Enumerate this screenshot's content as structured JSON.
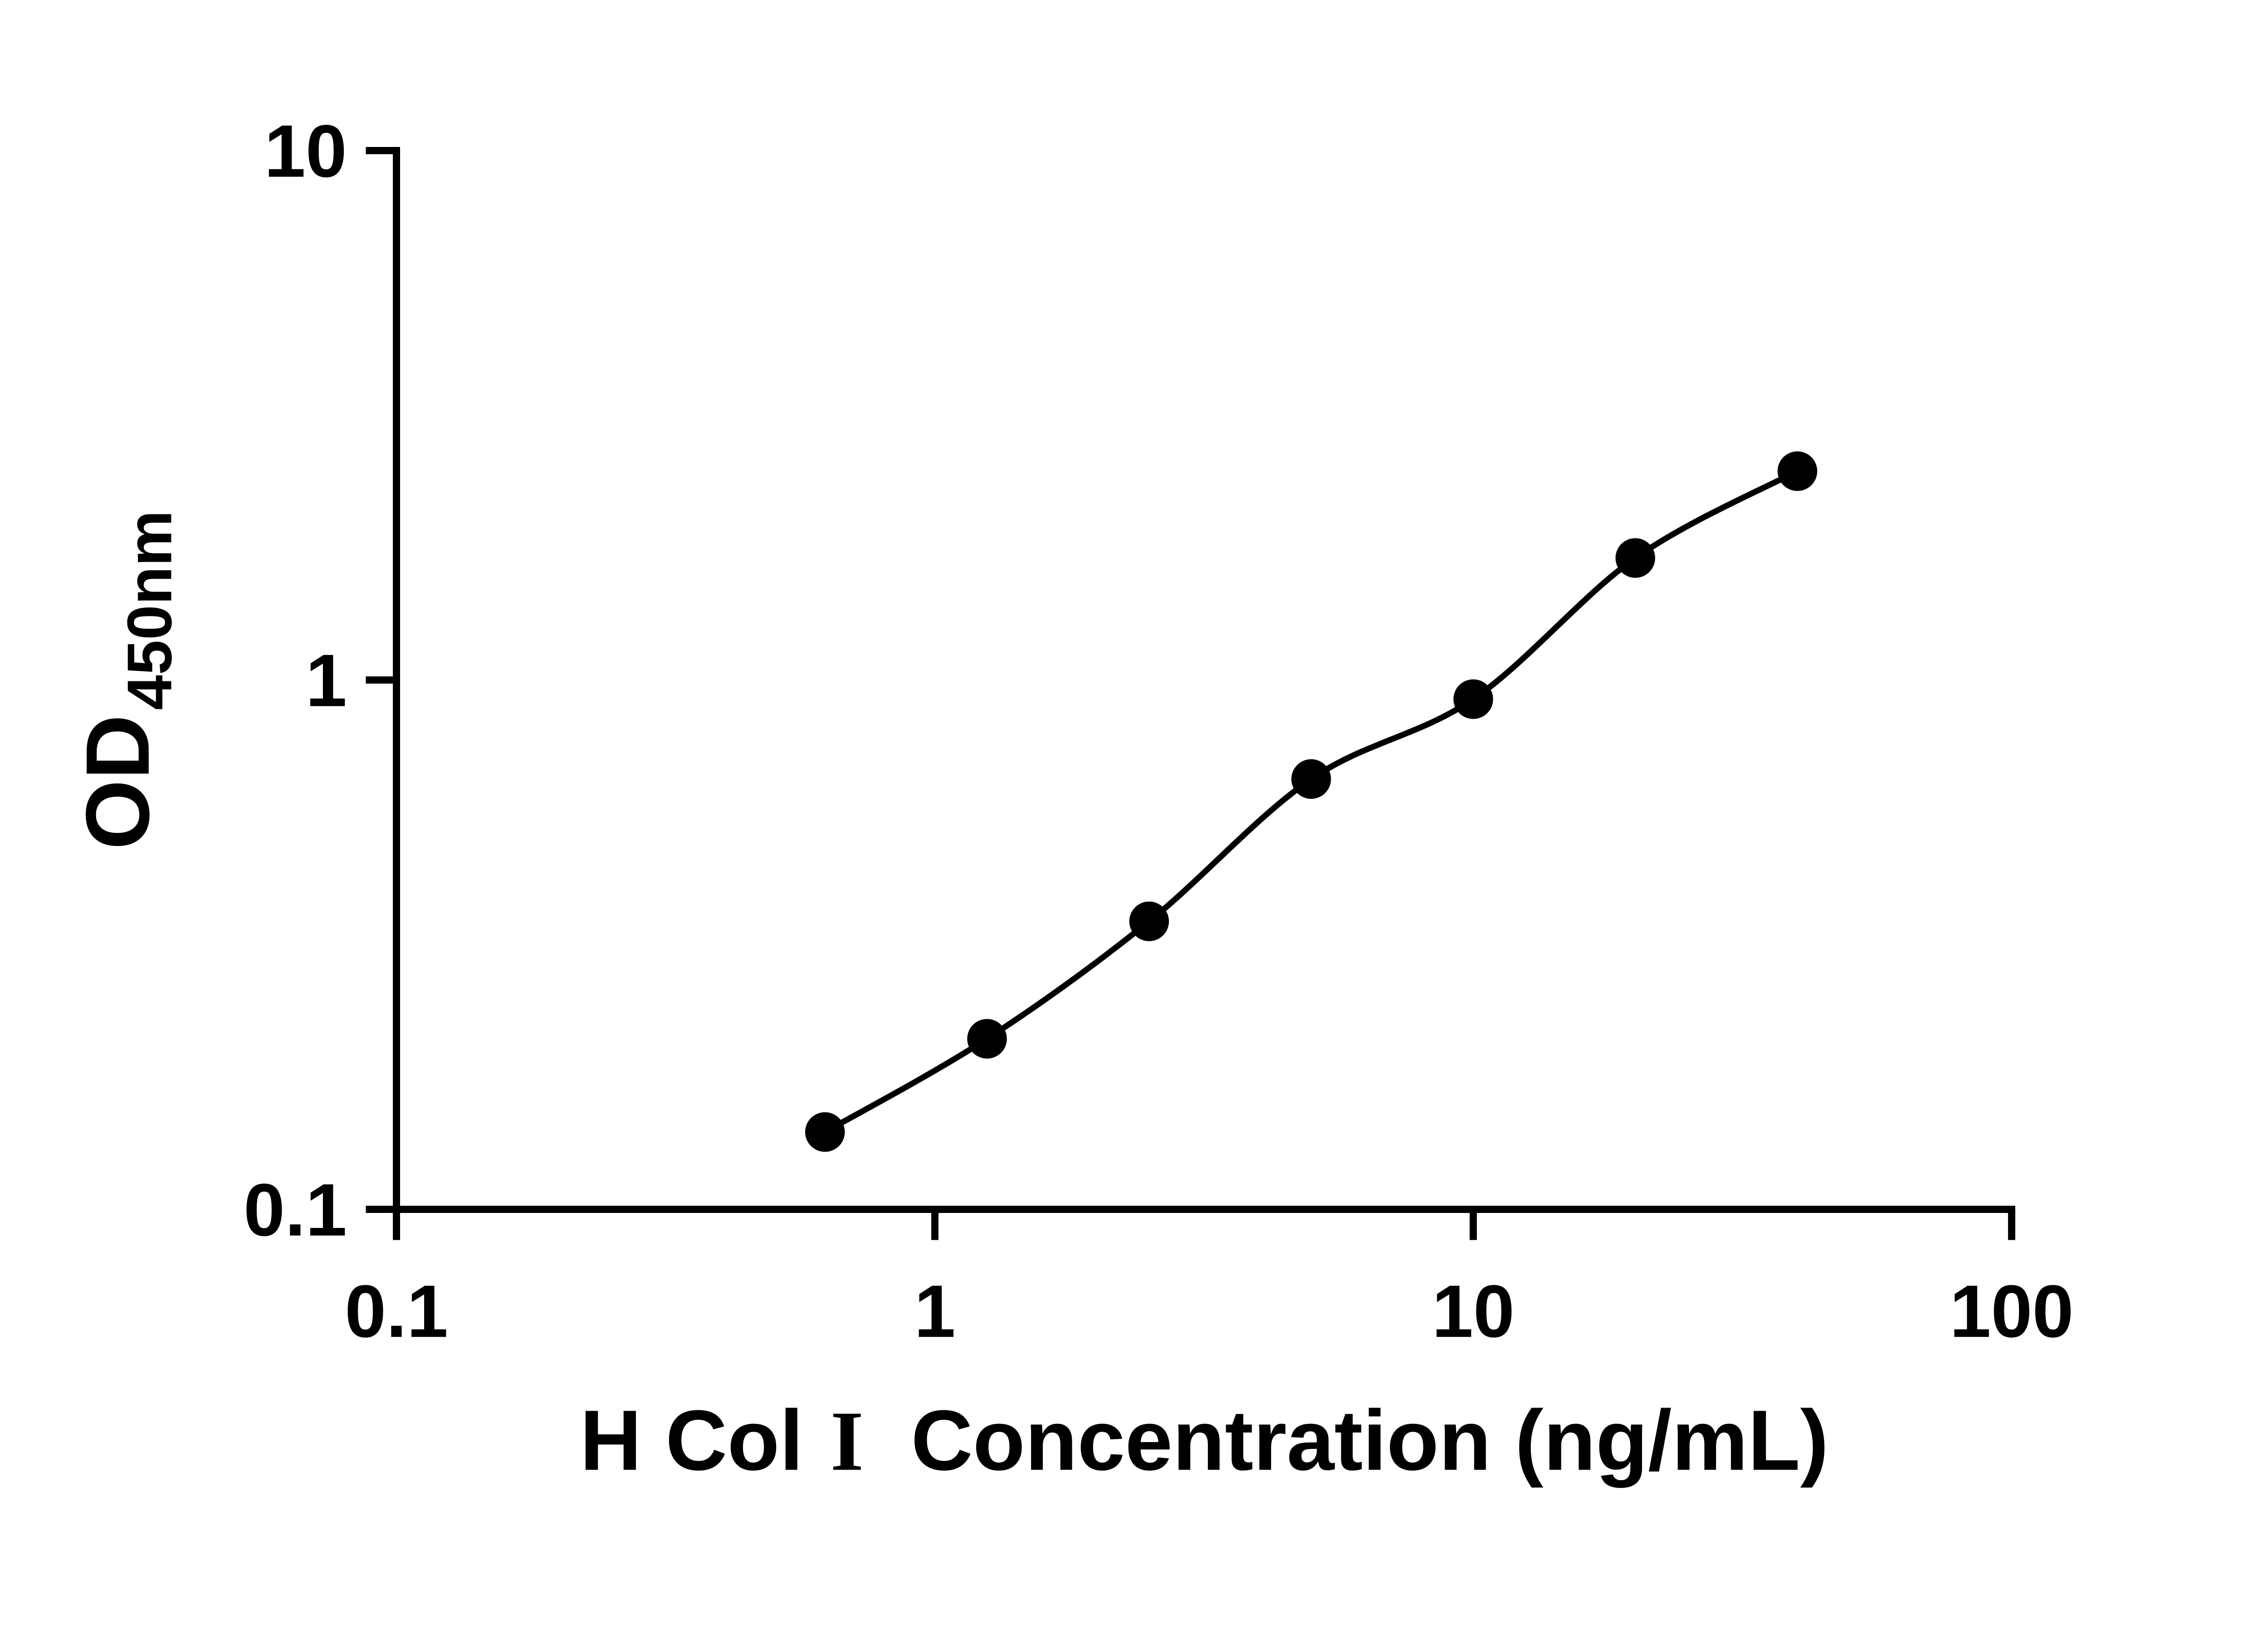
{
  "figure": {
    "background": "#ffffff"
  },
  "chart_data": {
    "type": "scatter",
    "title": "",
    "x": [
      0.625,
      1.25,
      2.5,
      5,
      10,
      20,
      40
    ],
    "y": [
      0.14,
      0.21,
      0.35,
      0.65,
      0.92,
      1.7,
      2.48
    ],
    "curve": "smooth",
    "xscale": "log",
    "yscale": "log",
    "xlim": [
      0.1,
      100
    ],
    "ylim": [
      0.1,
      10
    ],
    "xticks": [
      0.1,
      1,
      10,
      100
    ],
    "xtick_labels": [
      "0.1",
      "1",
      "10",
      "100"
    ],
    "yticks": [
      0.1,
      1,
      10
    ],
    "ytick_labels": [
      "0.1",
      "1",
      "10"
    ],
    "xlabel": {
      "prefix": "H Col",
      "numeral": "I",
      "suffix": "Concentration (ng/mL)"
    },
    "ylabel": {
      "main": "OD",
      "sub": "450nm"
    },
    "grid": "off",
    "legend": "none",
    "axis_color": "#000000",
    "line_color": "#000000",
    "marker_color": "#000000"
  }
}
